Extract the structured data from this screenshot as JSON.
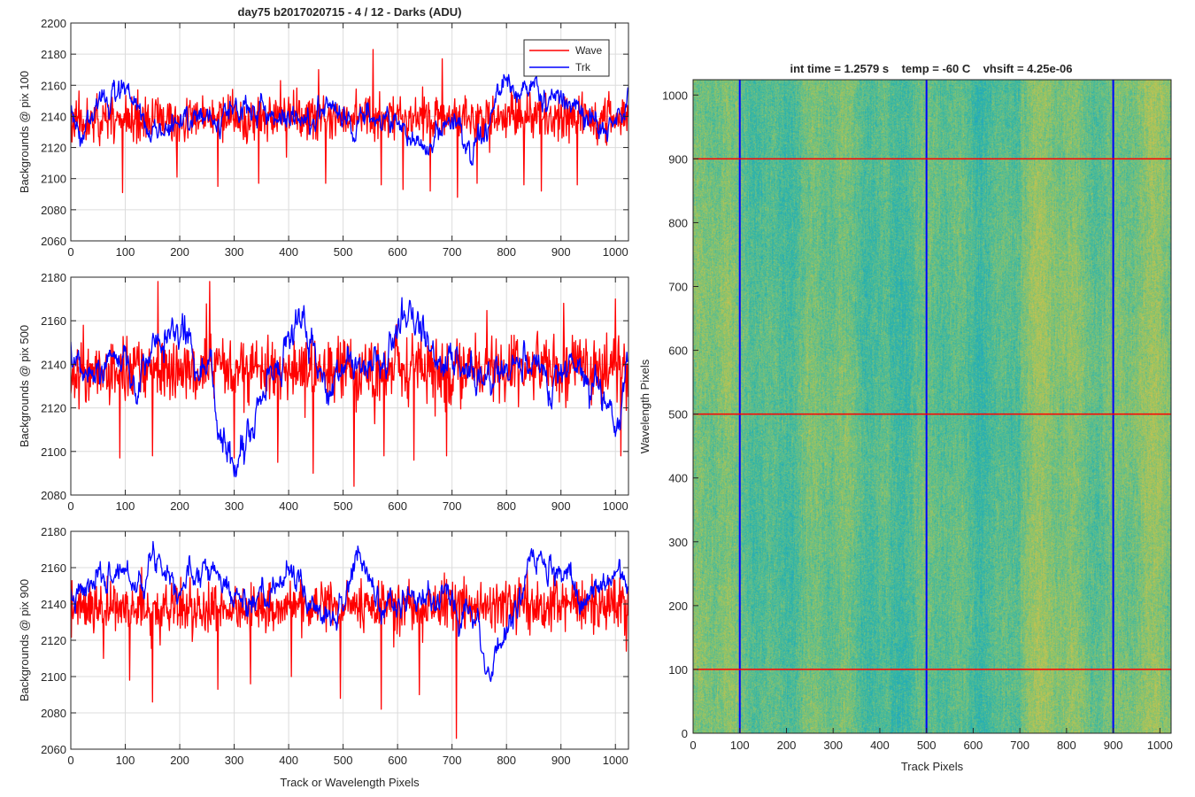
{
  "figure_title": "day75 b2017020715 - 4 / 12 - Darks (ADU)",
  "colors": {
    "wave": "#ff0000",
    "trk": "#0000ff",
    "grid": "#dcdcdc",
    "axis": "#262626"
  },
  "chart_data": [
    {
      "type": "line",
      "ylabel": "Backgrounds @ pix 100",
      "xlabel": "",
      "xlim": [
        0,
        1024
      ],
      "ylim": [
        2060,
        2200
      ],
      "xticks": [
        0,
        100,
        200,
        300,
        400,
        500,
        600,
        700,
        800,
        900,
        1000
      ],
      "yticks": [
        2060,
        2080,
        2100,
        2120,
        2140,
        2160,
        2180,
        2200
      ],
      "grid": true,
      "legend": {
        "placement": "top-right",
        "entries": [
          "Wave",
          "Trk"
        ]
      },
      "series": [
        {
          "name": "Wave",
          "color": "#ff0000",
          "mean": 2140,
          "noise": 11,
          "seed": 11,
          "keypoints": [
            [
              0,
              2138
            ],
            [
              1024,
              2140
            ]
          ],
          "spikes": [
            [
              95,
              2091
            ],
            [
              270,
              2095
            ],
            [
              345,
              2097
            ],
            [
              468,
              2097
            ],
            [
              570,
              2096
            ],
            [
              610,
              2093
            ],
            [
              660,
              2092
            ],
            [
              710,
              2088
            ],
            [
              746,
              2097
            ],
            [
              832,
              2096
            ],
            [
              864,
              2092
            ],
            [
              930,
              2096
            ],
            [
              195,
              2101
            ],
            [
              555,
              2183
            ],
            [
              682,
              2177
            ],
            [
              455,
              2170
            ]
          ]
        },
        {
          "name": "Trk",
          "color": "#0000ff",
          "noise": 5,
          "seed": 3,
          "keypoints": [
            [
              0,
              2142
            ],
            [
              15,
              2130
            ],
            [
              50,
              2152
            ],
            [
              100,
              2158
            ],
            [
              140,
              2136
            ],
            [
              180,
              2130
            ],
            [
              220,
              2142
            ],
            [
              260,
              2136
            ],
            [
              300,
              2142
            ],
            [
              350,
              2146
            ],
            [
              400,
              2136
            ],
            [
              450,
              2140
            ],
            [
              470,
              2152
            ],
            [
              500,
              2130
            ],
            [
              540,
              2140
            ],
            [
              580,
              2140
            ],
            [
              610,
              2130
            ],
            [
              650,
              2120
            ],
            [
              700,
              2140
            ],
            [
              740,
              2115
            ],
            [
              770,
              2140
            ],
            [
              810,
              2160
            ],
            [
              850,
              2160
            ],
            [
              880,
              2152
            ],
            [
              920,
              2145
            ],
            [
              960,
              2135
            ],
            [
              1000,
              2133
            ],
            [
              1024,
              2148
            ]
          ]
        }
      ]
    },
    {
      "type": "line",
      "ylabel": "Backgrounds @ pix 500",
      "xlabel": "",
      "xlim": [
        0,
        1024
      ],
      "ylim": [
        2080,
        2180
      ],
      "xticks": [
        0,
        100,
        200,
        300,
        400,
        500,
        600,
        700,
        800,
        900,
        1000
      ],
      "yticks": [
        2080,
        2100,
        2120,
        2140,
        2160,
        2180
      ],
      "grid": true,
      "series": [
        {
          "name": "Wave",
          "color": "#ff0000",
          "mean": 2137,
          "noise": 12,
          "seed": 21,
          "keypoints": [
            [
              0,
              2137
            ],
            [
              1024,
              2138
            ]
          ],
          "spikes": [
            [
              520,
              2084
            ],
            [
              445,
              2090
            ],
            [
              90,
              2097
            ],
            [
              150,
              2098
            ],
            [
              300,
              2097
            ],
            [
              380,
              2095
            ],
            [
              630,
              2096
            ],
            [
              690,
              2098
            ],
            [
              575,
              2098
            ],
            [
              1010,
              2098
            ],
            [
              160,
              2178
            ],
            [
              255,
              2178
            ],
            [
              905,
              2168
            ],
            [
              1000,
              2170
            ]
          ]
        },
        {
          "name": "Trk",
          "color": "#0000ff",
          "noise": 4.5,
          "seed": 5,
          "keypoints": [
            [
              0,
              2150
            ],
            [
              20,
              2130
            ],
            [
              60,
              2138
            ],
            [
              100,
              2148
            ],
            [
              120,
              2125
            ],
            [
              150,
              2150
            ],
            [
              190,
              2158
            ],
            [
              220,
              2148
            ],
            [
              260,
              2135
            ],
            [
              285,
              2098
            ],
            [
              300,
              2095
            ],
            [
              330,
              2108
            ],
            [
              350,
              2125
            ],
            [
              380,
              2142
            ],
            [
              420,
              2160
            ],
            [
              450,
              2140
            ],
            [
              470,
              2125
            ],
            [
              500,
              2140
            ],
            [
              540,
              2140
            ],
            [
              580,
              2140
            ],
            [
              610,
              2162
            ],
            [
              640,
              2158
            ],
            [
              680,
              2145
            ],
            [
              720,
              2140
            ],
            [
              760,
              2130
            ],
            [
              800,
              2138
            ],
            [
              840,
              2140
            ],
            [
              880,
              2132
            ],
            [
              920,
              2140
            ],
            [
              960,
              2132
            ],
            [
              990,
              2118
            ],
            [
              1000,
              2106
            ],
            [
              1024,
              2145
            ]
          ]
        }
      ]
    },
    {
      "type": "line",
      "ylabel": "Backgrounds @ pix 900",
      "xlabel": "Track or Wavelength Pixels",
      "xlim": [
        0,
        1024
      ],
      "ylim": [
        2060,
        2180
      ],
      "xticks": [
        0,
        100,
        200,
        300,
        400,
        500,
        600,
        700,
        800,
        900,
        1000
      ],
      "yticks": [
        2060,
        2080,
        2100,
        2120,
        2140,
        2160,
        2180
      ],
      "grid": true,
      "series": [
        {
          "name": "Wave",
          "color": "#ff0000",
          "mean": 2137,
          "noise": 11,
          "seed": 31,
          "keypoints": [
            [
              0,
              2137
            ],
            [
              1024,
              2140
            ]
          ],
          "spikes": [
            [
              708,
              2066
            ],
            [
              570,
              2082
            ],
            [
              495,
              2088
            ],
            [
              108,
              2098
            ],
            [
              150,
              2086
            ],
            [
              270,
              2093
            ],
            [
              330,
              2096
            ],
            [
              405,
              2100
            ],
            [
              640,
              2090
            ],
            [
              60,
              2110
            ],
            [
              1020,
              2114
            ]
          ]
        },
        {
          "name": "Trk",
          "color": "#0000ff",
          "noise": 4.5,
          "seed": 7,
          "keypoints": [
            [
              0,
              2140
            ],
            [
              40,
              2150
            ],
            [
              100,
              2160
            ],
            [
              120,
              2150
            ],
            [
              160,
              2168
            ],
            [
              200,
              2150
            ],
            [
              250,
              2165
            ],
            [
              280,
              2150
            ],
            [
              320,
              2140
            ],
            [
              360,
              2140
            ],
            [
              400,
              2160
            ],
            [
              440,
              2140
            ],
            [
              490,
              2135
            ],
            [
              530,
              2166
            ],
            [
              570,
              2138
            ],
            [
              620,
              2142
            ],
            [
              680,
              2142
            ],
            [
              740,
              2138
            ],
            [
              760,
              2110
            ],
            [
              775,
              2100
            ],
            [
              790,
              2120
            ],
            [
              820,
              2140
            ],
            [
              850,
              2162
            ],
            [
              880,
              2158
            ],
            [
              900,
              2155
            ],
            [
              940,
              2142
            ],
            [
              980,
              2150
            ],
            [
              1010,
              2162
            ],
            [
              1024,
              2150
            ]
          ]
        }
      ]
    },
    {
      "type": "heatmap",
      "title": "int time = 1.2579 s    temp = -60 C    vhsift = 4.25e-06",
      "xlabel": "Track Pixels",
      "ylabel": "Wavelength Pixels",
      "xlim": [
        0,
        1024
      ],
      "ylim": [
        0,
        1024
      ],
      "xticks": [
        0,
        100,
        200,
        300,
        400,
        500,
        600,
        700,
        800,
        900,
        1000
      ],
      "yticks": [
        0,
        100,
        200,
        300,
        400,
        500,
        600,
        700,
        800,
        900,
        1000
      ],
      "colormap": [
        "#1f9fd0",
        "#27b2ad",
        "#5fbe8c",
        "#a2c45c",
        "#d0c150"
      ],
      "vertical_lines": {
        "x": [
          100,
          500,
          900
        ],
        "color": "#0000ff"
      },
      "horizontal_lines": {
        "y": [
          100,
          500,
          900
        ],
        "color": "#ff0000"
      }
    }
  ]
}
